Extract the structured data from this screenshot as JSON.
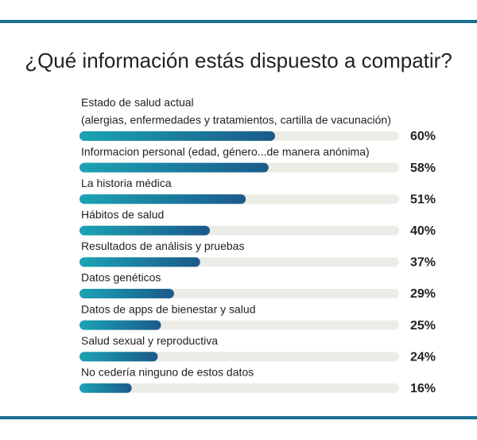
{
  "chart_data": {
    "type": "hbar",
    "title": "¿Qué información estás dispuesto a compatir?",
    "categories": [
      [
        "Estado de salud actual",
        "(alergias, enfermedades y tratamientos, cartilla de vacunación)"
      ],
      "Informacion personal (edad, género...de manera anónima)",
      "La historia médica",
      "Hábitos de salud",
      "Resultados de análisis y pruebas",
      "Datos genéticos",
      "Datos de apps de bienestar y salud",
      "Salud sexual y reproductiva",
      "No cedería ninguno de estos datos"
    ],
    "values": [
      60,
      58,
      51,
      40,
      37,
      29,
      25,
      24,
      16
    ],
    "value_labels": [
      "60%",
      "58%",
      "51%",
      "40%",
      "37%",
      "29%",
      "25%",
      "24%",
      "16%"
    ],
    "xlim": [
      0,
      100
    ],
    "colors": [
      "#1ba3b5",
      "#1b5a8a"
    ]
  }
}
